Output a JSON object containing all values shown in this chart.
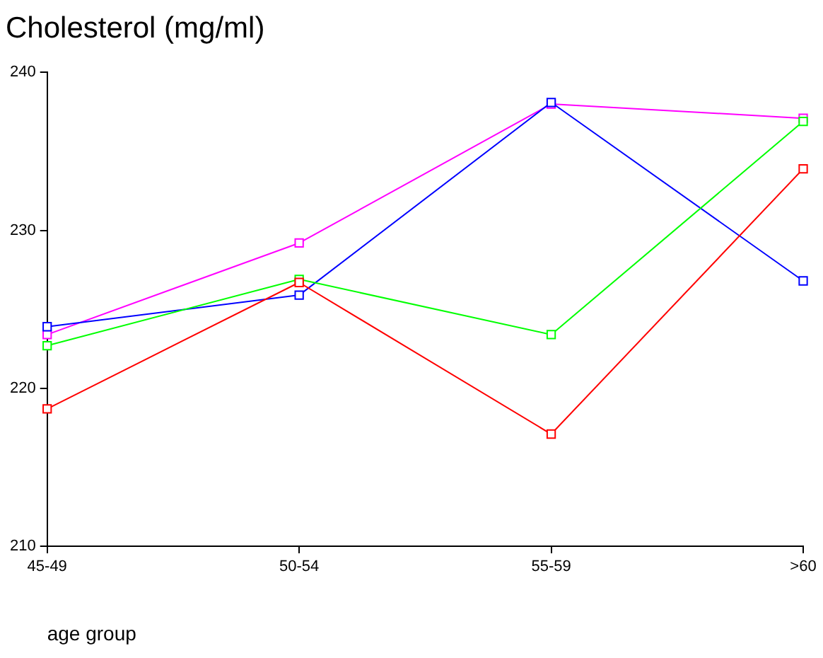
{
  "chart_data": {
    "type": "line",
    "title": "Cholesterol (mg/ml)",
    "xlabel": "age group",
    "categories": [
      "45-49",
      "50-54",
      "55-59",
      ">60"
    ],
    "series": [
      {
        "color": "#ff0000",
        "values": [
          218.7,
          226.7,
          217.1,
          233.9
        ]
      },
      {
        "color": "#00ff00",
        "values": [
          222.7,
          226.9,
          223.4,
          236.9
        ]
      },
      {
        "color": "#0000ff",
        "values": [
          223.9,
          225.9,
          238.1,
          226.8
        ]
      },
      {
        "color": "#ff00ff",
        "values": [
          223.4,
          229.2,
          238.0,
          237.1
        ]
      }
    ],
    "ylim": [
      210,
      240
    ],
    "yticks": [
      210,
      220,
      230,
      240
    ],
    "grid": false,
    "legend": false,
    "marker": "square",
    "line_style": "solid"
  }
}
